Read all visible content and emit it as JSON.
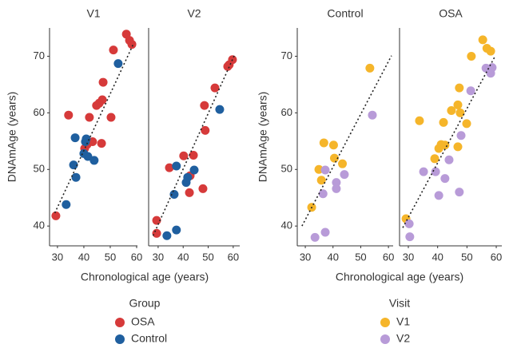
{
  "chart_data": [
    {
      "type": "scatter",
      "ylabel": "DNAmAge (years)",
      "xlabel": "Chronological age (years)",
      "legend_title": "Group",
      "ylim": [
        36.5,
        75
      ],
      "yticks": [
        40,
        50,
        60,
        70
      ],
      "panels": [
        {
          "title": "V1",
          "xlim": [
            27,
            60.3
          ],
          "xticks": [
            30,
            40,
            50,
            60
          ],
          "series": [
            {
              "name": "OSA",
              "color": "#d63a3a",
              "x": [
                29.4,
                34.2,
                40.3,
                41.2,
                42.1,
                43.3,
                44.8,
                45.8,
                46.7,
                47,
                47.3,
                50.3,
                51.2,
                56.1,
                57.3,
                58.2
              ],
              "values": [
                41.8,
                59.6,
                53.7,
                54.4,
                59.2,
                54.9,
                61.3,
                61.7,
                54.6,
                62.3,
                65.4,
                59.2,
                71.1,
                73.9,
                72.8,
                72.1
              ]
            },
            {
              "name": "Control",
              "color": "#1f5f9f",
              "x": [
                33.3,
                36.1,
                36.7,
                37,
                40,
                40.6,
                40.9,
                41.5,
                43.9,
                53
              ],
              "values": [
                43.8,
                50.8,
                55.6,
                48.6,
                52.8,
                54.9,
                55.4,
                52.3,
                51.6,
                68.7
              ]
            }
          ],
          "trend": {
            "x": [
              29,
              58.9
            ],
            "y": [
              42.3,
              72.3
            ]
          }
        },
        {
          "title": "V2",
          "xlim": [
            26.2,
            62.6
          ],
          "xticks": [
            30,
            40,
            50,
            60
          ],
          "series": [
            {
              "name": "OSA",
              "color": "#d63a3a",
              "x": [
                29.4,
                29.4,
                34.5,
                40.2,
                42.5,
                42.8,
                44.1,
                47.9,
                48.5,
                48.8,
                52.7,
                57.8,
                58.4,
                59.7
              ],
              "values": [
                41,
                38.7,
                50.3,
                52.4,
                45.9,
                48.9,
                52.5,
                46.6,
                61.3,
                56.9,
                64.4,
                68.2,
                68.5,
                69.4
              ]
            },
            {
              "name": "Control",
              "color": "#1f5f9f",
              "x": [
                33.5,
                36.4,
                37.3,
                37.3,
                41.2,
                41.8,
                44.4,
                54.6
              ],
              "values": [
                38.3,
                45.6,
                50.6,
                39.3,
                47.7,
                48.6,
                49.9,
                60.6
              ]
            }
          ],
          "trend": {
            "x": [
              28,
              60.4
            ],
            "y": [
              38.3,
              70.1
            ]
          }
        }
      ]
    },
    {
      "type": "scatter",
      "ylabel": "DNAmAge (years)",
      "xlabel": "Chronological age (years)",
      "legend_title": "Visit",
      "ylim": [
        36.5,
        75
      ],
      "yticks": [
        40,
        50,
        60,
        70
      ],
      "panels": [
        {
          "title": "Control",
          "xlim": [
            27.1,
            61.7
          ],
          "xticks": [
            30,
            40,
            50,
            60
          ],
          "series": [
            {
              "name": "V1",
              "color": "#f5b52a",
              "x": [
                32.3,
                34.9,
                35.8,
                36.7,
                40.2,
                40.5,
                43.4,
                53.3
              ],
              "values": [
                43.3,
                50,
                48.1,
                54.7,
                54.3,
                52,
                51,
                67.9
              ]
            },
            {
              "name": "V2",
              "color": "#b89bd8",
              "x": [
                33.5,
                36.4,
                37.2,
                37.2,
                41.2,
                41.2,
                44.1,
                54.2
              ],
              "values": [
                38,
                45.7,
                38.9,
                49.9,
                47.7,
                46.6,
                49.1,
                59.6
              ]
            }
          ],
          "trend": {
            "x": [
              28.8,
              61.1
            ],
            "y": [
              40,
              70.1
            ]
          }
        },
        {
          "title": "OSA",
          "xlim": [
            27,
            61.9
          ],
          "xticks": [
            30,
            40,
            50,
            60
          ],
          "series": [
            {
              "name": "V1",
              "color": "#f5b52a",
              "x": [
                29.2,
                33.8,
                39,
                40.4,
                41.2,
                42,
                42.5,
                44.7,
                46.9,
                46.9,
                47.4,
                47.7,
                49.9,
                51.5,
                55.4,
                56.8,
                58.1
              ],
              "values": [
                41.3,
                58.6,
                51.9,
                53.7,
                54.4,
                58.3,
                54.3,
                60.4,
                61.4,
                54,
                64.4,
                60,
                58.1,
                70,
                72.9,
                71.4,
                70.9
              ]
            },
            {
              "name": "V2",
              "color": "#b89bd8",
              "x": [
                30.3,
                30.5,
                35.2,
                39.3,
                40.4,
                42.5,
                43.9,
                47.4,
                48,
                51.3,
                56.5,
                58.1,
                58.6
              ],
              "values": [
                40.4,
                38.1,
                49.6,
                49.6,
                45.4,
                48.4,
                51.7,
                46,
                56,
                63.9,
                67.9,
                67,
                68
              ]
            }
          ],
          "trend": {
            "x": [
              28.1,
              59.7
            ],
            "y": [
              39.7,
              70.1
            ]
          }
        }
      ]
    }
  ]
}
